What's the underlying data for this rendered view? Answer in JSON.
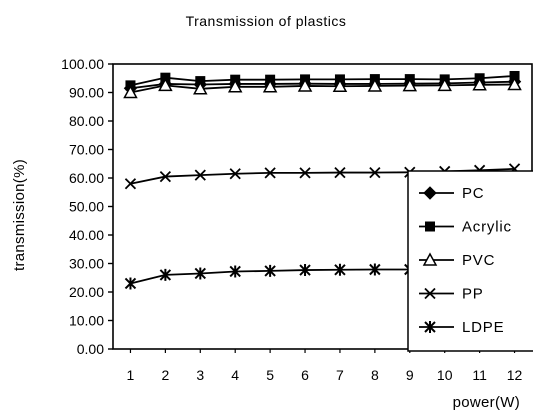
{
  "chart_data": {
    "type": "line",
    "title": "Transmission of plastics",
    "xlabel": "power(W)",
    "ylabel": "transmission(%)",
    "x": [
      1,
      2,
      3,
      4,
      5,
      6,
      7,
      8,
      9,
      10,
      11,
      12
    ],
    "x_tick_labels": [
      "1",
      "2",
      "3",
      "4",
      "5",
      "6",
      "7",
      "8",
      "9",
      "10",
      "11",
      "12"
    ],
    "ylim": [
      0,
      100
    ],
    "y_tick_labels": [
      "0.00",
      "10.00",
      "20.00",
      "30.00",
      "40.00",
      "50.00",
      "60.00",
      "70.00",
      "80.00",
      "90.00",
      "100.00"
    ],
    "grid": false,
    "legend_position": "right",
    "series": [
      {
        "name": "PC",
        "marker": "diamond-filled",
        "values": [
          91.5,
          93.0,
          92.8,
          93.0,
          93.0,
          93.1,
          93.0,
          93.0,
          93.1,
          93.2,
          93.5,
          93.8
        ]
      },
      {
        "name": "Acrylic",
        "marker": "square-filled",
        "values": [
          92.5,
          95.2,
          94.0,
          94.5,
          94.5,
          94.6,
          94.6,
          94.7,
          94.7,
          94.6,
          95.0,
          95.8
        ]
      },
      {
        "name": "PVC",
        "marker": "triangle-open",
        "values": [
          90.0,
          92.5,
          91.3,
          92.0,
          92.0,
          92.3,
          92.2,
          92.3,
          92.4,
          92.5,
          92.7,
          92.8
        ]
      },
      {
        "name": "PP",
        "marker": "x",
        "values": [
          58.0,
          60.5,
          61.0,
          61.5,
          61.8,
          61.8,
          61.9,
          61.9,
          62.0,
          62.3,
          62.7,
          63.2
        ]
      },
      {
        "name": "LDPE",
        "marker": "asterisk",
        "values": [
          23.0,
          26.0,
          26.5,
          27.2,
          27.4,
          27.7,
          27.8,
          27.9,
          27.9,
          28.0,
          28.1,
          28.2
        ]
      }
    ]
  }
}
